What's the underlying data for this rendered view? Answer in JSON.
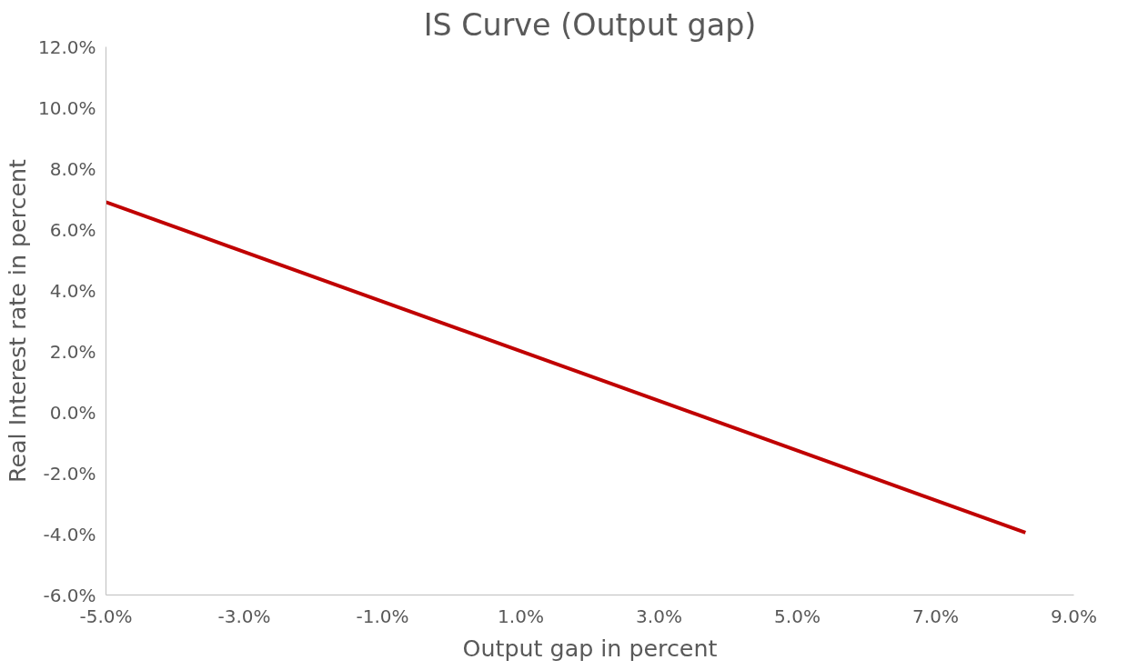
{
  "chart_data": {
    "type": "line",
    "title": "IS Curve (Output gap)",
    "xlabel": "Output gap in percent",
    "ylabel": "Real Interest rate in percent",
    "series": [
      {
        "color": "#c00000",
        "x": [
          -5.0,
          8.3
        ],
        "values": [
          6.9,
          -3.95
        ]
      }
    ],
    "xlim": [
      -5,
      9
    ],
    "xticks": [
      {
        "value": -5,
        "label": "-5.0%"
      },
      {
        "value": -3,
        "label": "-3.0%"
      },
      {
        "value": -1,
        "label": "-1.0%"
      },
      {
        "value": 1,
        "label": "1.0%"
      },
      {
        "value": 3,
        "label": "3.0%"
      },
      {
        "value": 5,
        "label": "5.0%"
      },
      {
        "value": 7,
        "label": "7.0%"
      },
      {
        "value": 9,
        "label": "9.0%"
      }
    ],
    "ylim": [
      -6,
      12
    ],
    "yticks": [
      {
        "value": -6,
        "label": "-6.0%"
      },
      {
        "value": -4,
        "label": "-4.0%"
      },
      {
        "value": -2,
        "label": "-2.0%"
      },
      {
        "value": 0,
        "label": "0.0%"
      },
      {
        "value": 2,
        "label": "2.0%"
      },
      {
        "value": 4,
        "label": "4.0%"
      },
      {
        "value": 6,
        "label": "6.0%"
      },
      {
        "value": 8,
        "label": "8.0%"
      },
      {
        "value": 10,
        "label": "10.0%"
      },
      {
        "value": 12,
        "label": "12.0%"
      }
    ],
    "grid": false,
    "marker": "none",
    "line_style": "solid"
  }
}
